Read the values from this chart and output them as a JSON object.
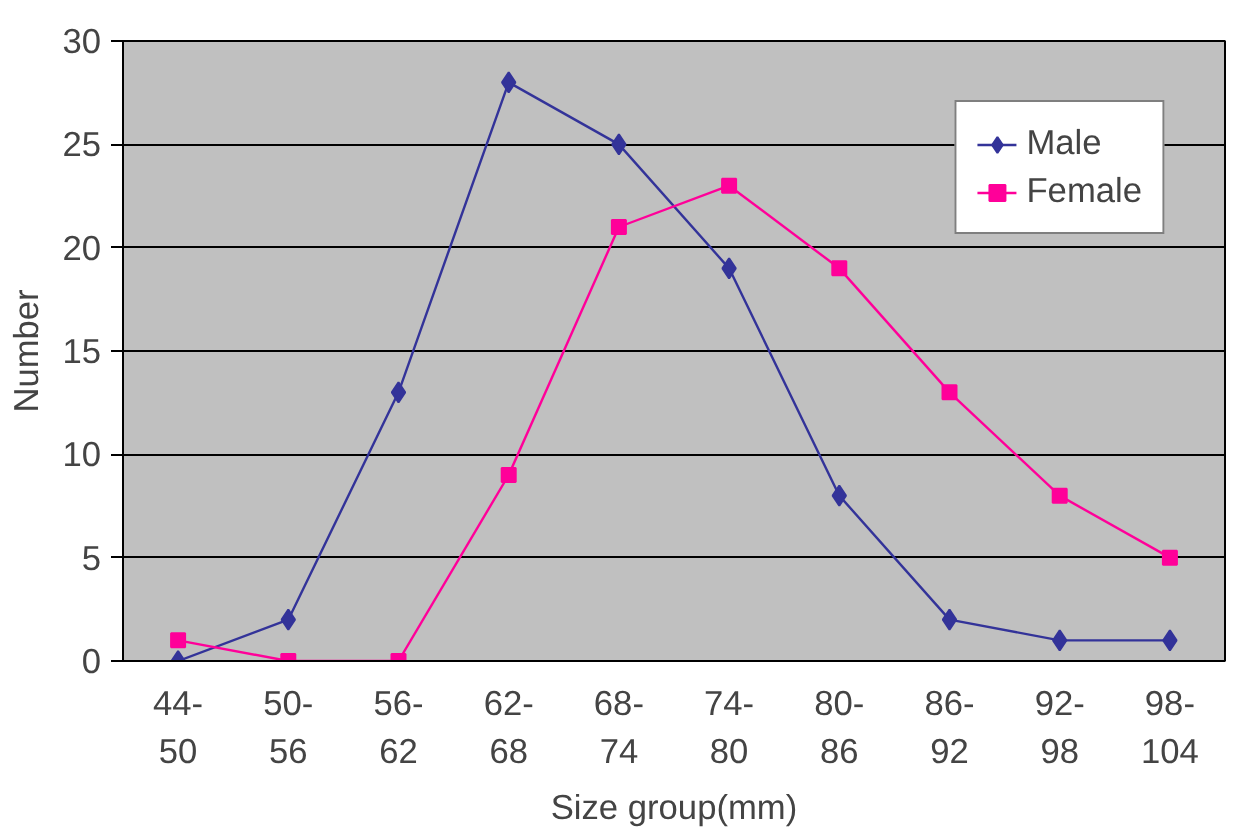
{
  "chart_data": {
    "type": "line",
    "xlabel": "Size group(mm)",
    "ylabel": "Number",
    "categories": [
      "44-\n50",
      "50-\n56",
      "56-\n62",
      "62-\n68",
      "68-\n74",
      "74-\n80",
      "80-\n86",
      "86-\n92",
      "92-\n98",
      "98-\n104"
    ],
    "series": [
      {
        "name": "Male",
        "color": "#333399",
        "marker": "diamond",
        "values": [
          0,
          2,
          13,
          28,
          25,
          19,
          8,
          2,
          1,
          1
        ]
      },
      {
        "name": "Female",
        "color": "#ff0099",
        "marker": "square",
        "values": [
          1,
          0,
          0,
          9,
          21,
          23,
          19,
          13,
          8,
          5
        ]
      }
    ],
    "ylim": [
      0,
      30
    ],
    "yticks": [
      0,
      5,
      10,
      15,
      20,
      25,
      30
    ],
    "grid": "y",
    "legend": "top right",
    "line_style": "solid"
  }
}
